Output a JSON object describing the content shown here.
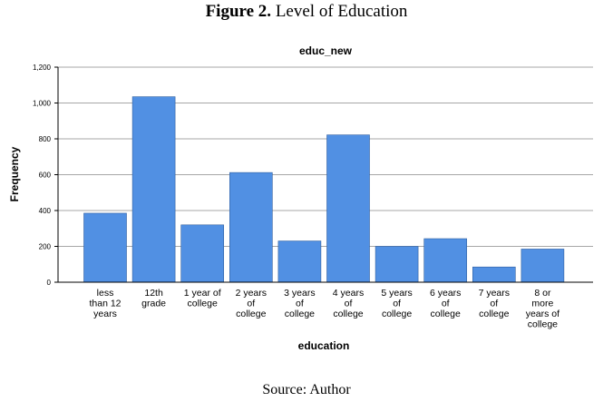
{
  "figure": {
    "label": "Figure 2.",
    "caption": "Level of Education",
    "source": "Source: Author"
  },
  "chart_data": {
    "type": "bar",
    "title": "educ_new",
    "xlabel": "education",
    "ylabel": "Frequency",
    "ylim": [
      0,
      1200
    ],
    "yticks": [
      0,
      200,
      400,
      600,
      800,
      1000,
      1200
    ],
    "ytick_labels": [
      "0",
      "200",
      "400",
      "600",
      "800",
      "1,000",
      "1,200"
    ],
    "grid": true,
    "legend": false,
    "bar_color": "#5190E3",
    "categories": [
      [
        "less",
        "than 12",
        "years"
      ],
      [
        "12th",
        "grade"
      ],
      [
        "1 year of",
        "college"
      ],
      [
        "2 years",
        "of",
        "college"
      ],
      [
        "3 years",
        "of",
        "college"
      ],
      [
        "4 years",
        "of",
        "college"
      ],
      [
        "5 years",
        "of",
        "college"
      ],
      [
        "6 years",
        "of",
        "college"
      ],
      [
        "7 years",
        "of",
        "college"
      ],
      [
        "8 or",
        "more",
        "years of",
        "college"
      ]
    ],
    "values": [
      385,
      1035,
      320,
      612,
      230,
      822,
      200,
      243,
      85,
      185
    ]
  }
}
